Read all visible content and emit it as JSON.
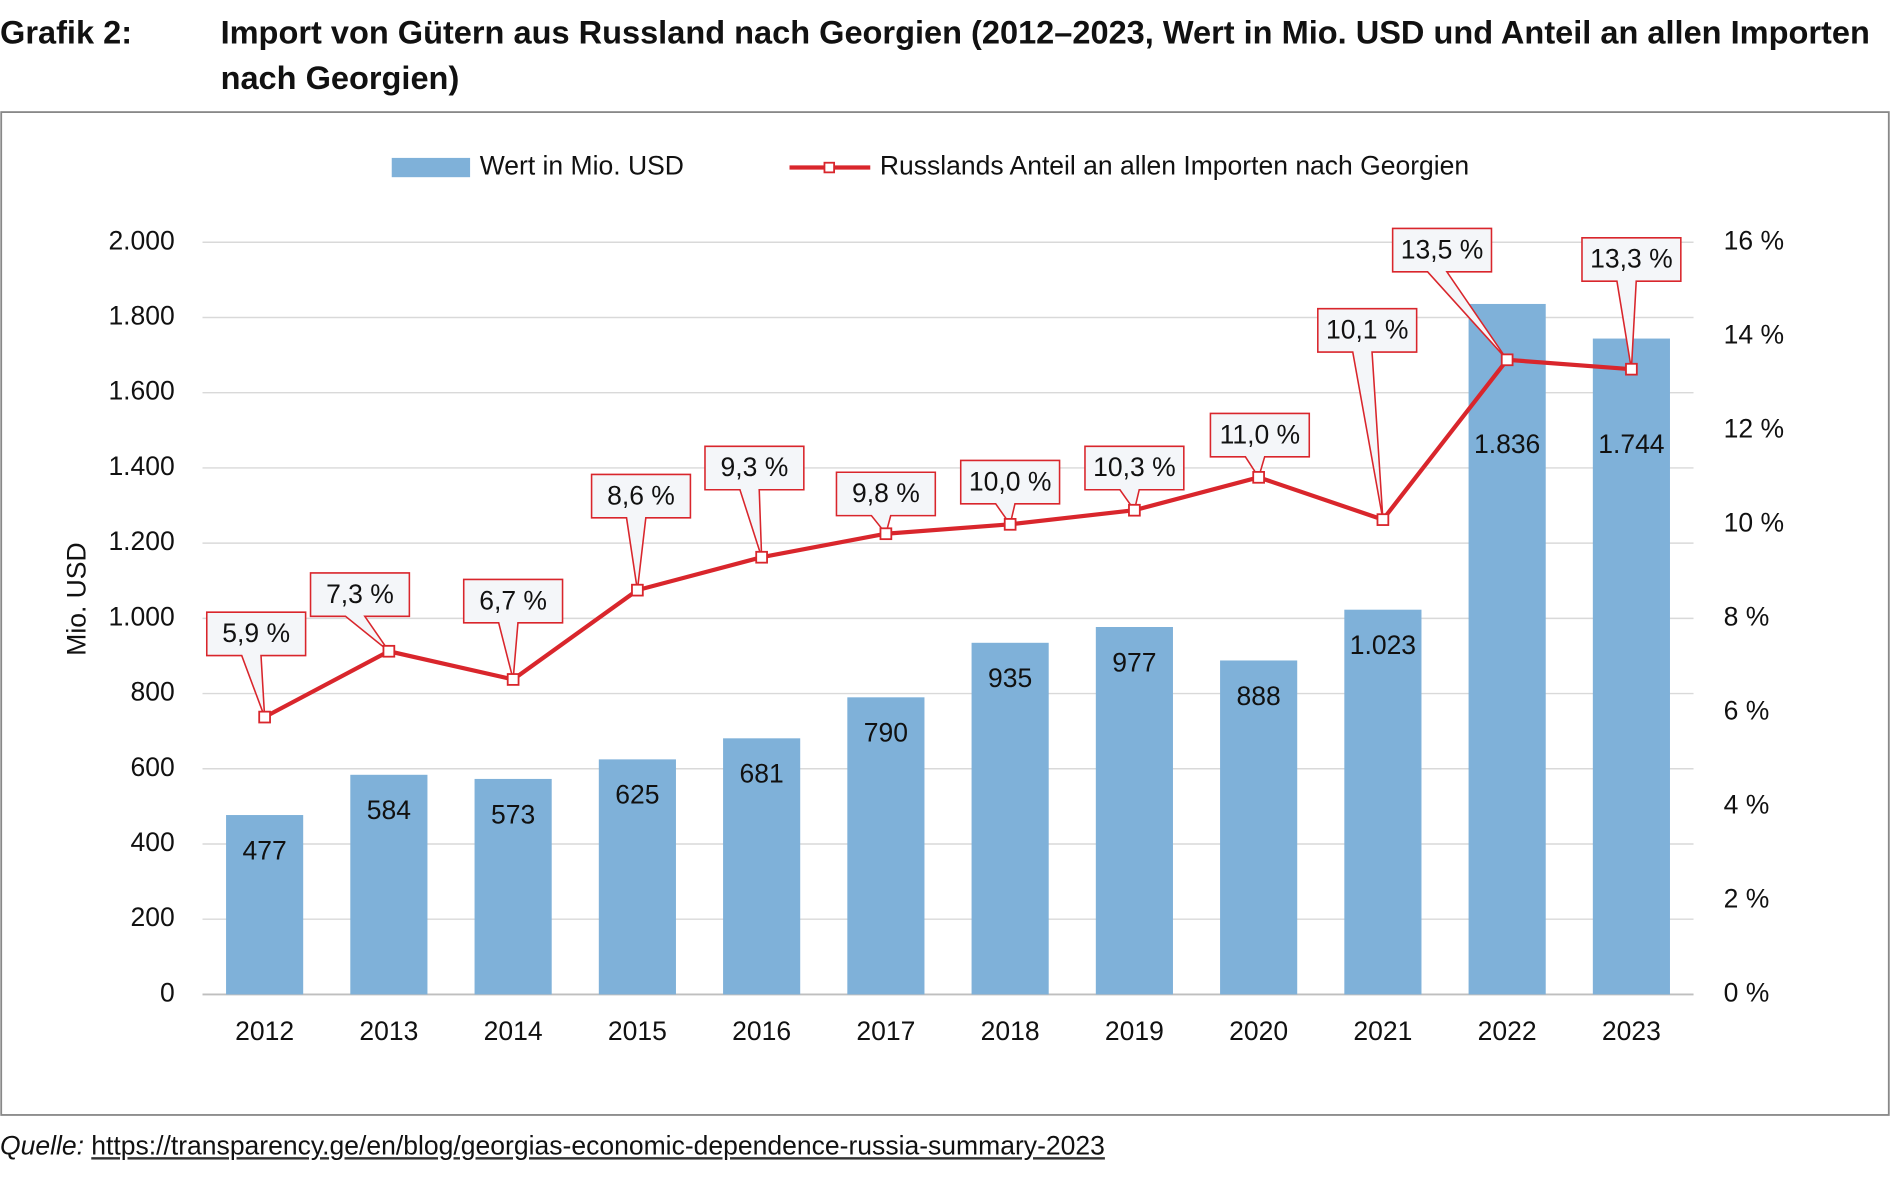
{
  "chart_data": {
    "type": "bar-line",
    "label": "Grafik 2:",
    "title": "Import von Gütern aus Russland nach Georgien (2012–2023, Wert in Mio. USD und Anteil an allen Importen nach Georgien)",
    "y_label": "Mio. USD",
    "categories": [
      "2012",
      "2013",
      "2014",
      "2015",
      "2016",
      "2017",
      "2018",
      "2019",
      "2020",
      "2021",
      "2022",
      "2023"
    ],
    "series": [
      {
        "name": "Wert in Mio. USD",
        "type": "bar",
        "color": "#7fb1d9",
        "values": [
          477,
          584,
          573,
          625,
          681,
          790,
          935,
          977,
          888,
          1023,
          1836,
          1744
        ],
        "value_labels": [
          "477",
          "584",
          "573",
          "625",
          "681",
          "790",
          "935",
          "977",
          "888",
          "1.023",
          "1.836",
          "1.744"
        ]
      },
      {
        "name": "Russlands Anteil an allen Importen nach Georgien",
        "type": "line",
        "color": "#d9262c",
        "axis": "y2",
        "values": [
          5.9,
          7.3,
          6.7,
          8.6,
          9.3,
          9.8,
          10.0,
          10.3,
          11.0,
          10.1,
          13.5,
          13.3
        ],
        "value_labels": [
          "5,9 %",
          "7,3 %",
          "6,7 %",
          "8,6 %",
          "9,3 %",
          "9,8 %",
          "10,0 %",
          "10,3 %",
          "11,0 %",
          "10,1 %",
          "13,5 %",
          "13,3 %"
        ]
      }
    ],
    "ylim": [
      0,
      2000
    ],
    "yticks": [
      0,
      200,
      400,
      600,
      800,
      {
        "value": 1000,
        "label": "1.000"
      },
      {
        "value": 1200,
        "label": "1.200"
      },
      {
        "value": 1400,
        "label": "1.400"
      },
      {
        "value": 1600,
        "label": "1.600"
      },
      {
        "value": 1800,
        "label": "1.800"
      },
      {
        "value": 2000,
        "label": "2.000"
      }
    ],
    "y2lim": [
      0,
      16
    ],
    "y2ticks": [
      {
        "value": 0,
        "label": "0 %"
      },
      {
        "value": 2,
        "label": "2 %"
      },
      {
        "value": 4,
        "label": "4 %"
      },
      {
        "value": 6,
        "label": "6 %"
      },
      {
        "value": 8,
        "label": "8 %"
      },
      {
        "value": 10,
        "label": "10 %"
      },
      {
        "value": 12,
        "label": "12 %"
      },
      {
        "value": 14,
        "label": "14 %"
      },
      {
        "value": 16,
        "label": "16 %"
      }
    ],
    "grid": true,
    "legend": "top",
    "source_label": "Quelle:",
    "source": "https://transparency.ge/en/blog/georgias-economic-dependence-russia-summary-2023"
  }
}
